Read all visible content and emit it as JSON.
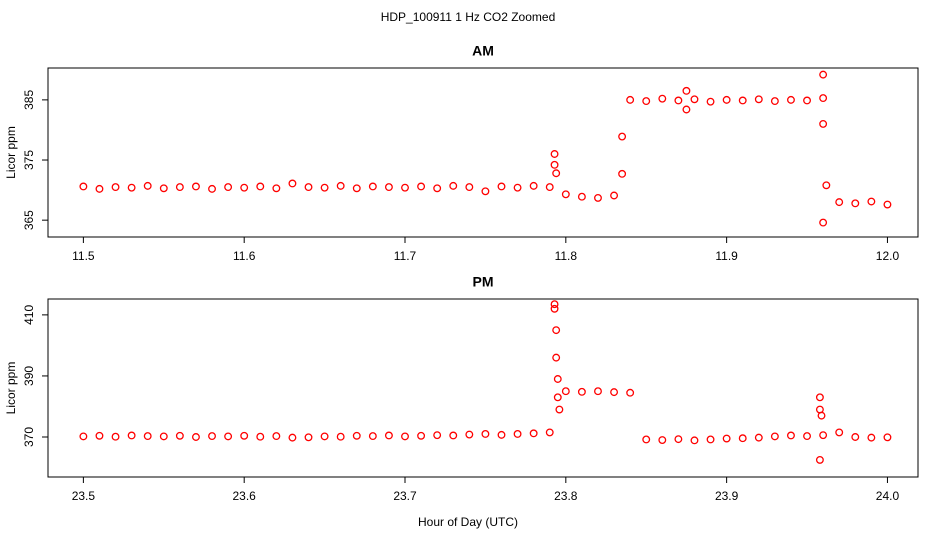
{
  "title": "HDP_100911  1 Hz CO2 Zoomed",
  "xlabel": "Hour of Day (UTC)",
  "chart_data": [
    {
      "type": "scatter",
      "title": "AM",
      "ylabel": "Licor ppm",
      "color": "#ff0000",
      "xlim": [
        11.478,
        12.019
      ],
      "ylim": [
        362.2,
        390.3
      ],
      "xticks": [
        11.5,
        11.6,
        11.7,
        11.8,
        11.9,
        {
          "value": 12,
          "label": "12.0"
        }
      ],
      "yticks": [
        365,
        375,
        385
      ],
      "x": [
        11.5,
        11.51,
        11.52,
        11.53,
        11.54,
        11.55,
        11.56,
        11.57,
        11.58,
        11.59,
        11.6,
        11.61,
        11.62,
        11.63,
        11.64,
        11.65,
        11.66,
        11.67,
        11.68,
        11.69,
        11.7,
        11.71,
        11.72,
        11.73,
        11.74,
        11.75,
        11.76,
        11.77,
        11.78,
        11.79,
        11.8,
        11.81,
        11.82,
        11.83,
        11.84,
        11.85,
        11.86,
        11.87,
        11.88,
        11.89,
        11.9,
        11.91,
        11.92,
        11.93,
        11.94,
        11.95,
        11.96,
        11.97,
        11.98,
        11.99,
        12.0,
        11.793,
        11.793,
        11.794,
        11.835,
        11.835,
        11.875,
        11.875,
        11.96,
        11.96,
        11.96,
        11.962
      ],
      "values": [
        370.6,
        370.2,
        370.5,
        370.4,
        370.7,
        370.3,
        370.5,
        370.6,
        370.2,
        370.5,
        370.4,
        370.6,
        370.3,
        371.1,
        370.5,
        370.4,
        370.7,
        370.3,
        370.6,
        370.5,
        370.4,
        370.6,
        370.3,
        370.7,
        370.5,
        369.8,
        370.6,
        370.4,
        370.7,
        370.5,
        369.3,
        368.9,
        368.7,
        369.1,
        385.0,
        384.8,
        385.2,
        384.9,
        385.1,
        384.7,
        385.0,
        384.9,
        385.1,
        384.8,
        385.0,
        384.9,
        385.3,
        368.0,
        367.8,
        368.1,
        367.6,
        376.0,
        374.2,
        372.8,
        378.9,
        372.7,
        386.5,
        383.4,
        389.2,
        381.0,
        364.6,
        370.8
      ]
    },
    {
      "type": "scatter",
      "title": "PM",
      "ylabel": "Licor ppm",
      "color": "#ff0000",
      "xlim": [
        23.478,
        24.019
      ],
      "ylim": [
        356.9,
        415.2
      ],
      "xticks": [
        23.5,
        23.6,
        23.7,
        23.8,
        23.9,
        {
          "value": 24,
          "label": "24.0"
        }
      ],
      "yticks": [
        370,
        390,
        410
      ],
      "x": [
        23.5,
        23.51,
        23.52,
        23.53,
        23.54,
        23.55,
        23.56,
        23.57,
        23.58,
        23.59,
        23.6,
        23.61,
        23.62,
        23.63,
        23.64,
        23.65,
        23.66,
        23.67,
        23.68,
        23.69,
        23.7,
        23.71,
        23.72,
        23.73,
        23.74,
        23.75,
        23.76,
        23.77,
        23.78,
        23.79,
        23.8,
        23.81,
        23.82,
        23.83,
        23.84,
        23.85,
        23.86,
        23.87,
        23.88,
        23.89,
        23.9,
        23.91,
        23.92,
        23.93,
        23.94,
        23.95,
        23.96,
        23.97,
        23.98,
        23.99,
        24.0,
        23.793,
        23.793,
        23.794,
        23.794,
        23.795,
        23.795,
        23.796,
        23.958,
        23.958,
        23.959,
        23.958
      ],
      "values": [
        370.2,
        370.4,
        370.1,
        370.5,
        370.3,
        370.2,
        370.4,
        370.0,
        370.3,
        370.2,
        370.4,
        370.1,
        370.3,
        369.8,
        369.9,
        370.2,
        370.1,
        370.4,
        370.3,
        370.5,
        370.2,
        370.4,
        370.6,
        370.5,
        370.8,
        371.0,
        370.7,
        371.0,
        371.2,
        371.5,
        385.0,
        384.8,
        385.0,
        384.7,
        384.5,
        369.2,
        369.0,
        369.3,
        368.9,
        369.2,
        369.5,
        369.6,
        369.8,
        370.2,
        370.5,
        370.3,
        370.6,
        371.5,
        370.0,
        369.8,
        369.9,
        413.5,
        412.0,
        405.0,
        396.0,
        389.0,
        383.0,
        379.0,
        383.0,
        379.0,
        377.0,
        362.5
      ]
    }
  ]
}
